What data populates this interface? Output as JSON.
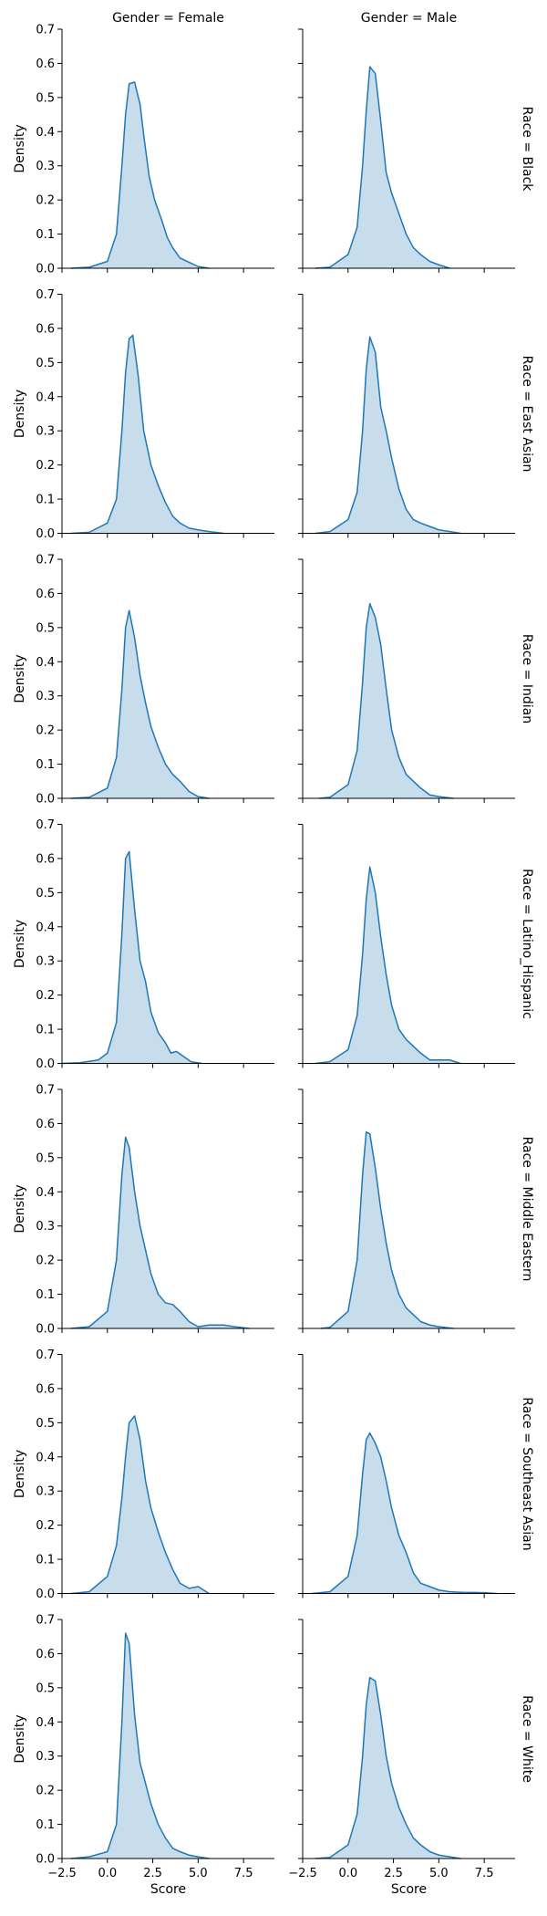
{
  "chart_data": {
    "type": "area",
    "kind": "kde-facet-grid",
    "x_axis_label": "Score",
    "y_axis_label": "Density",
    "xlim": [
      -2.5,
      9.2
    ],
    "ylim": [
      0,
      0.7
    ],
    "xticks": [
      -2.5,
      0.0,
      2.5,
      5.0,
      7.5
    ],
    "xtick_labels": [
      "−2.5",
      "0.0",
      "2.5",
      "5.0",
      "7.5"
    ],
    "yticks": [
      0.0,
      0.1,
      0.2,
      0.3,
      0.4,
      0.5,
      0.6,
      0.7
    ],
    "ytick_labels": [
      "0.0",
      "0.1",
      "0.2",
      "0.3",
      "0.4",
      "0.5",
      "0.6",
      "0.7"
    ],
    "columns": [
      "Gender = Female",
      "Gender = Male"
    ],
    "rows": [
      "Race = Black",
      "Race = East Asian",
      "Race = Indian",
      "Race = Latino_Hispanic",
      "Race = Middle Eastern",
      "Race = Southeast Asian",
      "Race = White"
    ],
    "colors": {
      "line": "#1f77b4",
      "fill": "#1f77b4",
      "fill_opacity": 0.25
    },
    "panels": [
      {
        "row": 0,
        "col": 0,
        "x": [
          -2.0,
          -1.0,
          0.0,
          0.5,
          0.8,
          1.0,
          1.2,
          1.5,
          1.8,
          2.0,
          2.3,
          2.6,
          3.0,
          3.3,
          3.6,
          4.0,
          4.4,
          5.0,
          5.6
        ],
        "y": [
          0,
          0.003,
          0.02,
          0.1,
          0.3,
          0.45,
          0.54,
          0.545,
          0.48,
          0.39,
          0.27,
          0.2,
          0.14,
          0.09,
          0.06,
          0.03,
          0.02,
          0.005,
          0
        ]
      },
      {
        "row": 0,
        "col": 1,
        "x": [
          -1.8,
          -1.0,
          0.0,
          0.5,
          0.8,
          1.0,
          1.2,
          1.5,
          1.8,
          2.1,
          2.4,
          2.8,
          3.2,
          3.6,
          4.0,
          4.5,
          5.0,
          5.6
        ],
        "y": [
          0,
          0.003,
          0.04,
          0.12,
          0.3,
          0.46,
          0.59,
          0.57,
          0.43,
          0.28,
          0.22,
          0.16,
          0.1,
          0.06,
          0.04,
          0.02,
          0.01,
          0
        ]
      },
      {
        "row": 1,
        "col": 0,
        "x": [
          -2.0,
          -1.0,
          0.0,
          0.5,
          0.8,
          1.0,
          1.2,
          1.4,
          1.7,
          2.0,
          2.4,
          2.8,
          3.2,
          3.6,
          4.0,
          4.5,
          5.0,
          5.6,
          6.4
        ],
        "y": [
          0,
          0.003,
          0.03,
          0.1,
          0.3,
          0.47,
          0.57,
          0.58,
          0.46,
          0.3,
          0.2,
          0.14,
          0.09,
          0.05,
          0.03,
          0.015,
          0.01,
          0.005,
          0
        ]
      },
      {
        "row": 1,
        "col": 1,
        "x": [
          -1.8,
          -1.0,
          0.0,
          0.5,
          0.8,
          1.0,
          1.2,
          1.5,
          1.8,
          2.1,
          2.4,
          2.8,
          3.2,
          3.6,
          4.0,
          4.5,
          5.0,
          5.6,
          6.2
        ],
        "y": [
          0,
          0.005,
          0.04,
          0.12,
          0.3,
          0.48,
          0.575,
          0.53,
          0.37,
          0.3,
          0.22,
          0.13,
          0.07,
          0.04,
          0.03,
          0.02,
          0.01,
          0.005,
          0
        ]
      },
      {
        "row": 2,
        "col": 0,
        "x": [
          -2.0,
          -1.0,
          0.0,
          0.5,
          0.8,
          1.0,
          1.2,
          1.5,
          1.8,
          2.1,
          2.4,
          2.8,
          3.2,
          3.6,
          4.0,
          4.5,
          5.0,
          5.6
        ],
        "y": [
          0,
          0.003,
          0.03,
          0.12,
          0.32,
          0.5,
          0.55,
          0.47,
          0.36,
          0.28,
          0.21,
          0.15,
          0.1,
          0.07,
          0.05,
          0.02,
          0.005,
          0
        ]
      },
      {
        "row": 2,
        "col": 1,
        "x": [
          -1.6,
          -1.0,
          0.0,
          0.5,
          0.8,
          1.0,
          1.2,
          1.5,
          1.8,
          2.1,
          2.4,
          2.8,
          3.2,
          3.6,
          4.0,
          4.5,
          5.0,
          5.8
        ],
        "y": [
          0,
          0.003,
          0.04,
          0.14,
          0.34,
          0.5,
          0.57,
          0.53,
          0.45,
          0.32,
          0.2,
          0.12,
          0.07,
          0.05,
          0.03,
          0.01,
          0.005,
          0
        ]
      },
      {
        "row": 3,
        "col": 0,
        "x": [
          -2.5,
          -1.5,
          -0.5,
          0.0,
          0.5,
          0.8,
          1.0,
          1.2,
          1.5,
          1.8,
          2.1,
          2.4,
          2.8,
          3.2,
          3.5,
          3.8,
          4.2,
          4.6,
          5.2
        ],
        "y": [
          0,
          0.002,
          0.01,
          0.03,
          0.12,
          0.38,
          0.6,
          0.62,
          0.45,
          0.3,
          0.24,
          0.15,
          0.09,
          0.06,
          0.03,
          0.035,
          0.02,
          0.005,
          0
        ]
      },
      {
        "row": 3,
        "col": 1,
        "x": [
          -1.8,
          -1.0,
          0.0,
          0.5,
          0.8,
          1.0,
          1.2,
          1.5,
          1.8,
          2.1,
          2.4,
          2.8,
          3.2,
          3.6,
          4.0,
          4.5,
          5.0,
          5.6,
          6.2
        ],
        "y": [
          0,
          0.005,
          0.04,
          0.14,
          0.32,
          0.48,
          0.575,
          0.5,
          0.37,
          0.26,
          0.17,
          0.1,
          0.07,
          0.05,
          0.03,
          0.01,
          0.01,
          0.01,
          0
        ]
      },
      {
        "row": 4,
        "col": 0,
        "x": [
          -2.0,
          -1.0,
          0.0,
          0.5,
          0.8,
          1.0,
          1.2,
          1.5,
          1.8,
          2.1,
          2.4,
          2.8,
          3.2,
          3.6,
          4.0,
          4.5,
          5.0,
          5.6,
          6.4,
          7.0,
          7.8
        ],
        "y": [
          0,
          0.005,
          0.05,
          0.2,
          0.45,
          0.56,
          0.53,
          0.4,
          0.3,
          0.23,
          0.16,
          0.1,
          0.075,
          0.07,
          0.05,
          0.02,
          0.005,
          0.01,
          0.01,
          0.005,
          0
        ]
      },
      {
        "row": 4,
        "col": 1,
        "x": [
          -1.5,
          -1.0,
          0.0,
          0.5,
          0.8,
          1.0,
          1.2,
          1.5,
          1.8,
          2.1,
          2.4,
          2.8,
          3.2,
          3.6,
          4.0,
          4.5,
          5.0,
          5.8
        ],
        "y": [
          0,
          0.003,
          0.05,
          0.2,
          0.45,
          0.575,
          0.57,
          0.47,
          0.35,
          0.25,
          0.17,
          0.1,
          0.06,
          0.04,
          0.02,
          0.01,
          0.005,
          0
        ]
      },
      {
        "row": 5,
        "col": 0,
        "x": [
          -2.0,
          -1.0,
          0.0,
          0.5,
          0.8,
          1.0,
          1.2,
          1.5,
          1.8,
          2.1,
          2.4,
          2.8,
          3.2,
          3.6,
          4.0,
          4.5,
          5.0,
          5.6
        ],
        "y": [
          0,
          0.005,
          0.05,
          0.14,
          0.28,
          0.4,
          0.5,
          0.52,
          0.45,
          0.33,
          0.25,
          0.18,
          0.12,
          0.07,
          0.03,
          0.015,
          0.02,
          0
        ]
      },
      {
        "row": 5,
        "col": 1,
        "x": [
          -2.0,
          -1.0,
          0.0,
          0.5,
          0.8,
          1.0,
          1.2,
          1.5,
          1.8,
          2.1,
          2.4,
          2.8,
          3.2,
          3.6,
          4.0,
          4.5,
          5.0,
          5.6,
          6.4,
          7.0,
          7.6,
          8.2
        ],
        "y": [
          0,
          0.005,
          0.05,
          0.17,
          0.35,
          0.45,
          0.47,
          0.44,
          0.4,
          0.33,
          0.25,
          0.17,
          0.12,
          0.06,
          0.03,
          0.02,
          0.01,
          0.005,
          0.003,
          0.003,
          0.002,
          0
        ]
      },
      {
        "row": 6,
        "col": 0,
        "x": [
          -2.0,
          -1.0,
          0.0,
          0.5,
          0.8,
          1.0,
          1.2,
          1.5,
          1.8,
          2.1,
          2.4,
          2.8,
          3.2,
          3.6,
          4.0,
          4.5,
          5.0,
          5.6
        ],
        "y": [
          0,
          0.005,
          0.02,
          0.1,
          0.4,
          0.66,
          0.63,
          0.42,
          0.28,
          0.22,
          0.16,
          0.1,
          0.06,
          0.03,
          0.02,
          0.01,
          0.005,
          0
        ]
      },
      {
        "row": 6,
        "col": 1,
        "x": [
          -1.8,
          -1.0,
          0.0,
          0.5,
          0.8,
          1.0,
          1.2,
          1.5,
          1.8,
          2.1,
          2.4,
          2.8,
          3.2,
          3.6,
          4.0,
          4.5,
          5.0,
          5.6,
          6.2
        ],
        "y": [
          0,
          0.003,
          0.04,
          0.13,
          0.3,
          0.45,
          0.53,
          0.52,
          0.42,
          0.3,
          0.22,
          0.15,
          0.1,
          0.06,
          0.04,
          0.02,
          0.01,
          0.005,
          0
        ]
      }
    ]
  }
}
